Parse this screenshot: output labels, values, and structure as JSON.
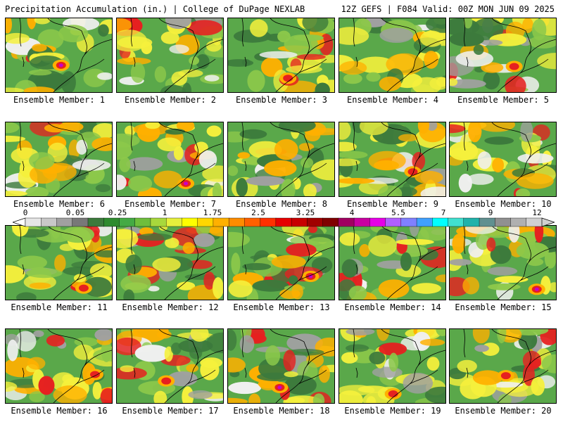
{
  "header": {
    "left": "Precipitation Accumulation (in.) | College of DuPage NEXLAB",
    "right": "12Z GEFS | F084 Valid: 00Z MON JUN 09 2025"
  },
  "members": [
    {
      "label": "Ensemble Member: 1"
    },
    {
      "label": "Ensemble Member: 2"
    },
    {
      "label": "Ensemble Member: 3"
    },
    {
      "label": "Ensemble Member: 4"
    },
    {
      "label": "Ensemble Member: 5"
    },
    {
      "label": "Ensemble Member: 6"
    },
    {
      "label": "Ensemble Member: 7"
    },
    {
      "label": "Ensemble Member: 8"
    },
    {
      "label": "Ensemble Member: 9"
    },
    {
      "label": "Ensemble Member: 10"
    },
    {
      "label": "Ensemble Member: 11"
    },
    {
      "label": "Ensemble Member: 12"
    },
    {
      "label": "Ensemble Member: 13"
    },
    {
      "label": "Ensemble Member: 14"
    },
    {
      "label": "Ensemble Member: 15"
    },
    {
      "label": "Ensemble Member: 16"
    },
    {
      "label": "Ensemble Member: 17"
    },
    {
      "label": "Ensemble Member: 18"
    },
    {
      "label": "Ensemble Member: 19"
    },
    {
      "label": "Ensemble Member: 20"
    }
  ],
  "colorbar": {
    "tick_labels": [
      "0",
      "0.05",
      "0.25",
      "1",
      "1.75",
      "2.5",
      "3.25",
      "4",
      "5.5",
      "7",
      "9",
      "12"
    ],
    "colors": [
      "#e6e6e6",
      "#c8c8c8",
      "#a0a0a0",
      "#787878",
      "#3c7a3c",
      "#2e8b2e",
      "#44aa44",
      "#6ebe3c",
      "#a8d83c",
      "#e6f03c",
      "#ffff00",
      "#ffd700",
      "#ffb000",
      "#ff8c00",
      "#ff6000",
      "#ff3000",
      "#e60000",
      "#c80000",
      "#a00000",
      "#800000",
      "#a00060",
      "#c800a0",
      "#e600e6",
      "#b060ff",
      "#8080ff",
      "#40a0ff",
      "#00ffff",
      "#40e0d0",
      "#20b2aa",
      "#609090",
      "#909090",
      "#b0b0b0",
      "#d0d0d0"
    ]
  },
  "palette": {
    "green_dark": "#3c7a3c",
    "green": "#5aa84a",
    "green_light": "#8cc84a",
    "yellow": "#f5f03c",
    "orange": "#ffb000",
    "red": "#e62020",
    "magenta": "#c800c8",
    "gray": "#a0a0a0",
    "white": "#f0f0f0"
  }
}
